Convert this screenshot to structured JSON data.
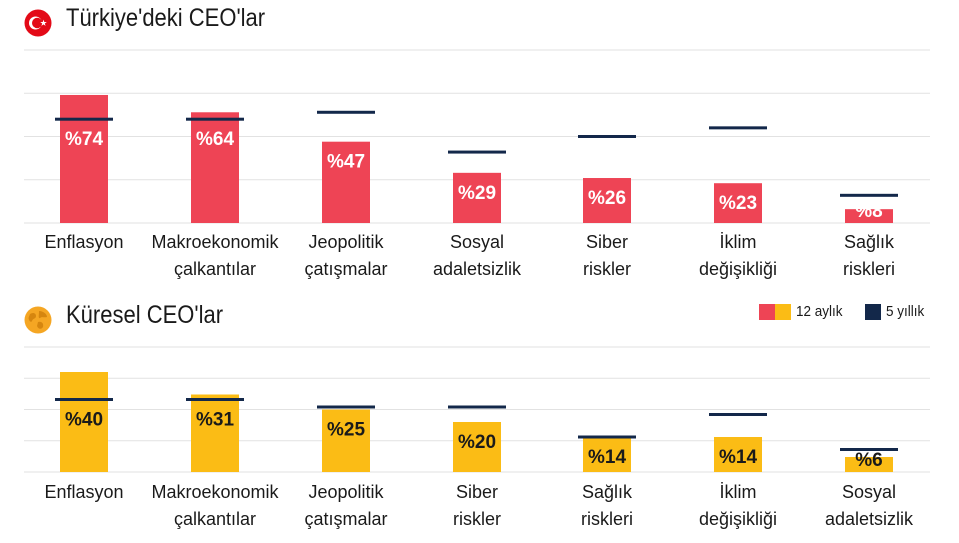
{
  "colors": {
    "turkey_bar": "#ee4455",
    "global_bar": "#fbbc15",
    "legend_red": "#ee4455",
    "five_year_marker": "#13284a",
    "grid": "#e2e2e2"
  },
  "legend": {
    "twelve_month_label": "12 aylık",
    "five_year_label": "5 yıllık"
  },
  "chart_data": [
    {
      "type": "bar",
      "title": "Türkiye'deki CEO'lar",
      "icon": "turkey-flag-icon",
      "ylim": [
        0,
        100
      ],
      "grid": true,
      "categories": [
        [
          "Enflasyon"
        ],
        [
          "Makroekonomik",
          "çalkantılar"
        ],
        [
          "Jeopolitik",
          "çatışmalar"
        ],
        [
          "Sosyal",
          "adaletsizlik"
        ],
        [
          "Siber",
          "riskler"
        ],
        [
          "İklim",
          "değişikliği"
        ],
        [
          "Sağlık",
          "riskleri"
        ]
      ],
      "series": [
        {
          "name": "12 aylık",
          "values": [
            74,
            64,
            47,
            29,
            26,
            23,
            8
          ],
          "labels": [
            "%74",
            "%64",
            "%47",
            "%29",
            "%26",
            "%23",
            "%8"
          ]
        },
        {
          "name": "5 yıllık",
          "values": [
            60,
            60,
            64,
            41,
            50,
            55,
            16
          ]
        }
      ]
    },
    {
      "type": "bar",
      "title": "Küresel CEO'lar",
      "icon": "globe-icon",
      "ylim": [
        0,
        50
      ],
      "grid": true,
      "categories": [
        [
          "Enflasyon"
        ],
        [
          "Makroekonomik",
          "çalkantılar"
        ],
        [
          "Jeopolitik",
          "çatışmalar"
        ],
        [
          "Siber",
          "riskler"
        ],
        [
          "Sağlık",
          "riskleri"
        ],
        [
          "İklim",
          "değişikliği"
        ],
        [
          "Sosyal",
          "adaletsizlik"
        ]
      ],
      "series": [
        {
          "name": "12 aylık",
          "values": [
            40,
            31,
            25,
            20,
            14,
            14,
            6
          ],
          "labels": [
            "%40",
            "%31",
            "%25",
            "%20",
            "%14",
            "%14",
            "%6"
          ]
        },
        {
          "name": "5 yıllık",
          "values": [
            29,
            29,
            26,
            26,
            14,
            23,
            9
          ]
        }
      ]
    }
  ]
}
